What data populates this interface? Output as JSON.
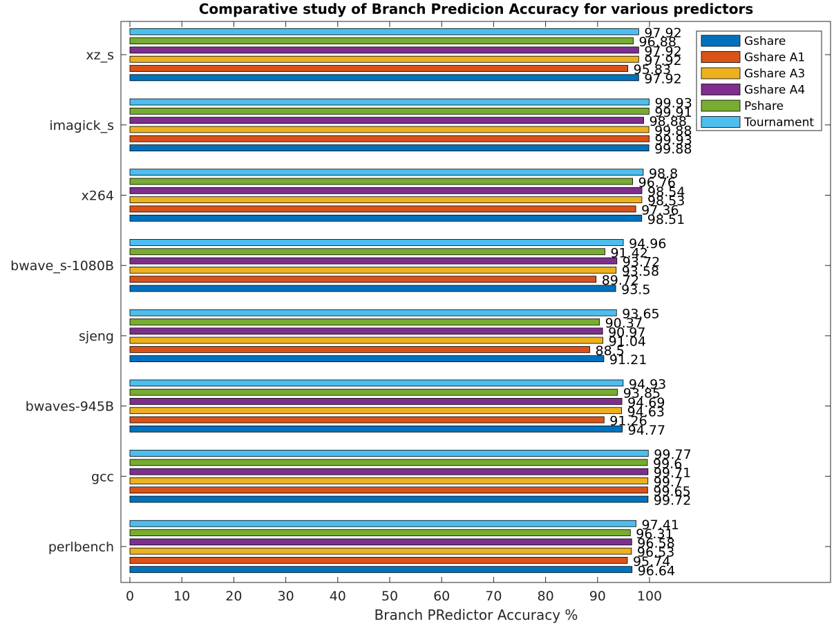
{
  "chart_data": {
    "type": "bar",
    "orientation": "horizontal",
    "title": "Comparative study of Branch Predicion Accuracy for various predictors",
    "xlabel": "Branch PRedictor Accuracy %",
    "ylabel": "",
    "xlim": [
      0,
      135
    ],
    "xticks": [
      0,
      10,
      20,
      30,
      40,
      50,
      60,
      70,
      80,
      90,
      100
    ],
    "grid": false,
    "legend_position": "top-right",
    "categories": [
      "perlbench",
      "gcc",
      "bwaves-945B",
      "sjeng",
      "bwave_s-1080B",
      "x264",
      "imagick_s",
      "xz_s"
    ],
    "series": [
      {
        "name": "Gshare",
        "color": "#0072BD",
        "values": [
          96.64,
          99.72,
          94.77,
          91.21,
          93.5,
          98.51,
          99.88,
          97.92
        ],
        "labels": [
          "96.64",
          "99.72",
          "94.77",
          "91.21",
          "93.5",
          "98.51",
          "99.88",
          "97.92"
        ]
      },
      {
        "name": "Gshare A1",
        "color": "#D95319",
        "values": [
          95.74,
          99.65,
          91.26,
          88.5,
          89.72,
          97.36,
          99.93,
          95.83
        ],
        "labels": [
          "95.74",
          "99.65",
          "91.26",
          "88.5",
          "89.72",
          "97.36",
          "99.93",
          "95.83"
        ]
      },
      {
        "name": "Gshare A3",
        "color": "#EDB120",
        "values": [
          96.53,
          99.7,
          94.63,
          91.04,
          93.58,
          98.53,
          99.88,
          97.92
        ],
        "labels": [
          "96.53",
          "99.7",
          "94.63",
          "91.04",
          "93.58",
          "98.53",
          "99.88",
          "97.92"
        ]
      },
      {
        "name": "Gshare A4",
        "color": "#7E2F8E",
        "values": [
          96.58,
          99.71,
          94.69,
          90.97,
          93.72,
          98.54,
          98.88,
          97.92
        ],
        "labels": [
          "96.58",
          "99.71",
          "94.69",
          "90.97",
          "93.72",
          "98.54",
          "98.88",
          "97.92"
        ]
      },
      {
        "name": "Pshare",
        "color": "#77AC30",
        "values": [
          96.31,
          99.6,
          93.85,
          90.37,
          91.42,
          96.76,
          99.91,
          96.88
        ],
        "labels": [
          "96.31",
          "99.6",
          "93.85",
          "90.37",
          "91.42",
          "96.76",
          "99.91",
          "96.88"
        ]
      },
      {
        "name": "Tournament",
        "color": "#4DBEEE",
        "values": [
          97.41,
          99.77,
          94.93,
          93.65,
          94.96,
          98.8,
          99.93,
          97.92
        ],
        "labels": [
          "97.41",
          "99.77",
          "94.93",
          "93.65",
          "94.96",
          "98.8",
          "99.93",
          "97.92"
        ]
      }
    ]
  }
}
